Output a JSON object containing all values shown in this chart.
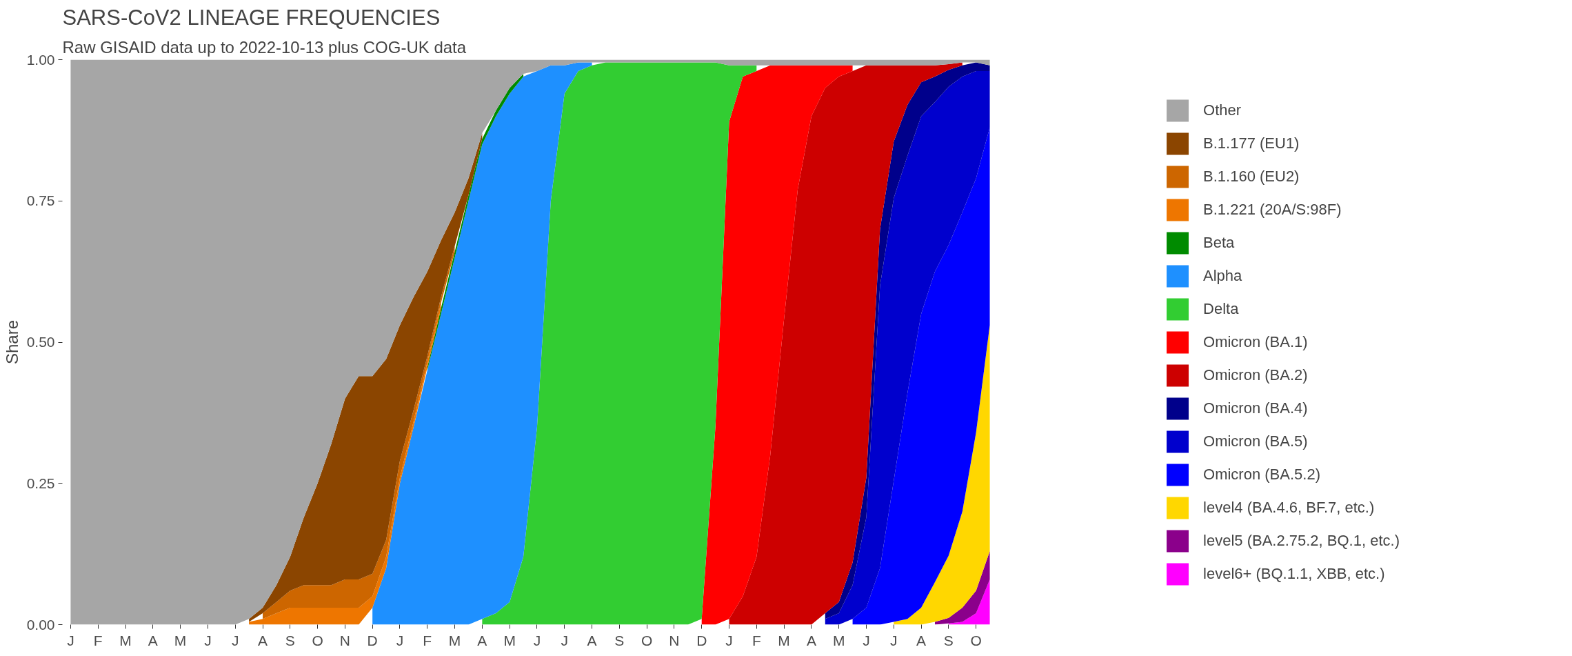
{
  "chart_data": {
    "type": "area",
    "stacked": true,
    "title": "SARS-CoV2 LINEAGE FREQUENCIES",
    "subtitle": "Raw GISAID data up to 2022-10-13 plus COG-UK data",
    "ylabel": "Share",
    "legend": "right",
    "ylim": [
      0,
      1
    ],
    "yticks": [
      {
        "value": 0,
        "label": "0.00"
      },
      {
        "value": 0.25,
        "label": "0.25"
      },
      {
        "value": 0.5,
        "label": "0.50"
      },
      {
        "value": 0.75,
        "label": "0.75"
      },
      {
        "value": 1,
        "label": "1.00"
      }
    ],
    "categories": [
      "J",
      null,
      "F",
      null,
      "M",
      null,
      "A",
      null,
      "M",
      null,
      "J",
      null,
      "J",
      null,
      "A",
      null,
      "S",
      null,
      "O",
      null,
      "N",
      null,
      "D",
      null,
      "J",
      null,
      "F",
      null,
      "M",
      null,
      "A",
      null,
      "M",
      null,
      "J",
      null,
      "J",
      null,
      "A",
      null,
      "S",
      null,
      "O",
      null,
      "N",
      null,
      "D",
      null,
      "J",
      null,
      "F",
      null,
      "M",
      null,
      "A",
      null,
      "M",
      null,
      "J",
      null,
      "J",
      null,
      "A",
      null,
      "S",
      null,
      "O",
      null
    ],
    "series": [
      {
        "name": "level6+ (BQ.1.1, XBB, etc.)",
        "color": "#ff00ff",
        "values": [
          null,
          null,
          null,
          null,
          null,
          null,
          null,
          null,
          null,
          null,
          null,
          null,
          null,
          null,
          null,
          null,
          null,
          null,
          null,
          null,
          null,
          null,
          null,
          null,
          null,
          null,
          null,
          null,
          null,
          null,
          null,
          null,
          null,
          null,
          null,
          null,
          null,
          null,
          null,
          null,
          null,
          null,
          null,
          null,
          null,
          null,
          null,
          null,
          null,
          null,
          null,
          null,
          null,
          null,
          null,
          null,
          null,
          null,
          null,
          null,
          null,
          null,
          null,
          null,
          0.002,
          0.005,
          0.02,
          0.08
        ]
      },
      {
        "name": "level5 (BA.2.75.2, BQ.1, etc.)",
        "color": "#8b008b",
        "values": [
          null,
          null,
          null,
          null,
          null,
          null,
          null,
          null,
          null,
          null,
          null,
          null,
          null,
          null,
          null,
          null,
          null,
          null,
          null,
          null,
          null,
          null,
          null,
          null,
          null,
          null,
          null,
          null,
          null,
          null,
          null,
          null,
          null,
          null,
          null,
          null,
          null,
          null,
          null,
          null,
          null,
          null,
          null,
          null,
          null,
          null,
          null,
          null,
          null,
          null,
          null,
          null,
          null,
          null,
          null,
          null,
          null,
          null,
          null,
          null,
          null,
          null,
          null,
          0.005,
          0.01,
          0.025,
          0.04,
          0.05
        ]
      },
      {
        "name": "level4 (BA.4.6, BF.7, etc.)",
        "color": "#ffd700",
        "values": [
          null,
          null,
          null,
          null,
          null,
          null,
          null,
          null,
          null,
          null,
          null,
          null,
          null,
          null,
          null,
          null,
          null,
          null,
          null,
          null,
          null,
          null,
          null,
          null,
          null,
          null,
          null,
          null,
          null,
          null,
          null,
          null,
          null,
          null,
          null,
          null,
          null,
          null,
          null,
          null,
          null,
          null,
          null,
          null,
          null,
          null,
          null,
          null,
          null,
          null,
          null,
          null,
          null,
          null,
          null,
          null,
          null,
          null,
          null,
          null,
          0.005,
          0.01,
          0.03,
          0.07,
          0.11,
          0.17,
          0.28,
          0.4
        ]
      },
      {
        "name": "Omicron (BA.5.2)",
        "color": "#0000ff",
        "values": [
          null,
          null,
          null,
          null,
          null,
          null,
          null,
          null,
          null,
          null,
          null,
          null,
          null,
          null,
          null,
          null,
          null,
          null,
          null,
          null,
          null,
          null,
          null,
          null,
          null,
          null,
          null,
          null,
          null,
          null,
          null,
          null,
          null,
          null,
          null,
          null,
          null,
          null,
          null,
          null,
          null,
          null,
          null,
          null,
          null,
          null,
          null,
          null,
          null,
          null,
          null,
          null,
          null,
          null,
          null,
          null,
          null,
          0.01,
          0.03,
          0.1,
          0.25,
          0.4,
          0.52,
          0.55,
          0.55,
          0.53,
          0.45,
          0.35
        ]
      },
      {
        "name": "Omicron (BA.5)",
        "color": "#0000cd",
        "values": [
          null,
          null,
          null,
          null,
          null,
          null,
          null,
          null,
          null,
          null,
          null,
          null,
          null,
          null,
          null,
          null,
          null,
          null,
          null,
          null,
          null,
          null,
          null,
          null,
          null,
          null,
          null,
          null,
          null,
          null,
          null,
          null,
          null,
          null,
          null,
          null,
          null,
          null,
          null,
          null,
          null,
          null,
          null,
          null,
          null,
          null,
          null,
          null,
          null,
          null,
          null,
          null,
          null,
          null,
          null,
          0.01,
          0.02,
          0.06,
          0.16,
          0.5,
          0.5,
          0.42,
          0.35,
          0.3,
          0.28,
          0.24,
          0.19,
          0.1
        ]
      },
      {
        "name": "Omicron (BA.4)",
        "color": "#00008b",
        "values": [
          null,
          null,
          null,
          null,
          null,
          null,
          null,
          null,
          null,
          null,
          null,
          null,
          null,
          null,
          null,
          null,
          null,
          null,
          null,
          null,
          null,
          null,
          null,
          null,
          null,
          null,
          null,
          null,
          null,
          null,
          null,
          null,
          null,
          null,
          null,
          null,
          null,
          null,
          null,
          null,
          null,
          null,
          null,
          null,
          null,
          null,
          null,
          null,
          null,
          null,
          null,
          null,
          null,
          null,
          null,
          0.01,
          0.02,
          0.04,
          0.07,
          0.1,
          0.1,
          0.09,
          0.06,
          0.045,
          0.03,
          0.02,
          0.015,
          0.01
        ]
      },
      {
        "name": "Omicron (BA.2)",
        "color": "#cd0000",
        "values": [
          null,
          null,
          null,
          null,
          null,
          null,
          null,
          null,
          null,
          null,
          null,
          null,
          null,
          null,
          null,
          null,
          null,
          null,
          null,
          null,
          null,
          null,
          null,
          null,
          null,
          null,
          null,
          null,
          null,
          null,
          null,
          null,
          null,
          null,
          null,
          null,
          null,
          null,
          null,
          null,
          null,
          null,
          null,
          null,
          null,
          null,
          null,
          null,
          0.01,
          0.05,
          0.12,
          0.3,
          0.54,
          0.77,
          0.9,
          0.93,
          0.93,
          0.87,
          0.73,
          0.29,
          0.135,
          0.07,
          0.03,
          0.02,
          0.01,
          0.005,
          null,
          null
        ]
      },
      {
        "name": "Omicron (BA.1)",
        "color": "#ff0000",
        "values": [
          null,
          null,
          null,
          null,
          null,
          null,
          null,
          null,
          null,
          null,
          null,
          null,
          null,
          null,
          null,
          null,
          null,
          null,
          null,
          null,
          null,
          null,
          null,
          null,
          null,
          null,
          null,
          null,
          null,
          null,
          null,
          null,
          null,
          null,
          null,
          null,
          null,
          null,
          null,
          null,
          null,
          null,
          null,
          null,
          null,
          null,
          0.01,
          0.35,
          0.88,
          0.92,
          0.86,
          0.69,
          0.45,
          0.22,
          0.09,
          0.04,
          0.02,
          0.01,
          null,
          null,
          null,
          null,
          null,
          null,
          null,
          null,
          null,
          null
        ]
      },
      {
        "name": "Delta",
        "color": "#32cd32",
        "values": [
          null,
          null,
          null,
          null,
          null,
          null,
          null,
          null,
          null,
          null,
          null,
          null,
          null,
          null,
          null,
          null,
          null,
          null,
          null,
          null,
          null,
          null,
          null,
          null,
          null,
          null,
          null,
          null,
          null,
          null,
          0.01,
          0.02,
          0.04,
          0.12,
          0.35,
          0.75,
          0.94,
          0.98,
          0.99,
          0.995,
          0.995,
          0.995,
          0.995,
          0.995,
          0.995,
          0.995,
          0.985,
          0.645,
          0.1,
          0.02,
          0.01,
          null,
          null,
          null,
          null,
          null,
          null,
          null,
          null,
          null,
          null,
          null,
          null,
          null,
          null,
          null,
          null,
          null
        ]
      },
      {
        "name": "Alpha",
        "color": "#1e90ff",
        "values": [
          null,
          null,
          null,
          null,
          null,
          null,
          null,
          null,
          null,
          null,
          null,
          null,
          null,
          null,
          null,
          null,
          null,
          null,
          null,
          null,
          null,
          null,
          0.03,
          0.1,
          0.25,
          0.35,
          0.45,
          0.55,
          0.65,
          0.75,
          0.84,
          0.88,
          0.9,
          0.85,
          0.63,
          0.24,
          0.05,
          0.015,
          0.005,
          null,
          null,
          null,
          null,
          null,
          null,
          null,
          null,
          null,
          null,
          null,
          null,
          null,
          null,
          null,
          null,
          null,
          null,
          null,
          null,
          null,
          null,
          null,
          null,
          null,
          null,
          null,
          null,
          null
        ]
      },
      {
        "name": "Beta",
        "color": "#008b00",
        "values": [
          null,
          null,
          null,
          null,
          null,
          null,
          null,
          null,
          null,
          null,
          null,
          null,
          null,
          null,
          null,
          null,
          null,
          null,
          null,
          null,
          null,
          null,
          null,
          null,
          null,
          null,
          0.005,
          0.01,
          0.01,
          0.01,
          0.01,
          0.01,
          0.01,
          0.005,
          null,
          null,
          null,
          null,
          null,
          null,
          null,
          null,
          null,
          null,
          null,
          null,
          null,
          null,
          null,
          null,
          null,
          null,
          null,
          null,
          null,
          null,
          null,
          null,
          null,
          null,
          null,
          null,
          null,
          null,
          null,
          null,
          null,
          null
        ]
      },
      {
        "name": "B.1.221 (20A/S:98F)",
        "color": "#ee7600",
        "values": [
          null,
          null,
          null,
          null,
          null,
          null,
          null,
          null,
          null,
          null,
          null,
          null,
          null,
          0.005,
          0.01,
          0.02,
          0.03,
          0.03,
          0.03,
          0.03,
          0.03,
          0.03,
          0.02,
          0.02,
          0.01,
          0.01,
          0.01,
          0.01,
          null,
          null,
          null,
          null,
          null,
          null,
          null,
          null,
          null,
          null,
          null,
          null,
          null,
          null,
          null,
          null,
          null,
          null,
          null,
          null,
          null,
          null,
          null,
          null,
          null,
          null,
          null,
          null,
          null,
          null,
          null,
          null,
          null,
          null,
          null,
          null,
          null,
          null,
          null,
          null
        ]
      },
      {
        "name": "B.1.160 (EU2)",
        "color": "#cd6600",
        "values": [
          null,
          null,
          null,
          null,
          null,
          null,
          null,
          null,
          null,
          null,
          null,
          null,
          null,
          null,
          0.01,
          0.02,
          0.03,
          0.04,
          0.04,
          0.04,
          0.05,
          0.05,
          0.04,
          0.03,
          0.03,
          0.02,
          0.01,
          0.01,
          0.01,
          null,
          null,
          null,
          null,
          null,
          null,
          null,
          null,
          null,
          null,
          null,
          null,
          null,
          null,
          null,
          null,
          null,
          null,
          null,
          null,
          null,
          null,
          null,
          null,
          null,
          null,
          null,
          null,
          null,
          null,
          null,
          null,
          null,
          null,
          null,
          null,
          null,
          null,
          null
        ]
      },
      {
        "name": "B.1.177 (EU1)",
        "color": "#8b4500",
        "values": [
          null,
          null,
          null,
          null,
          null,
          null,
          null,
          null,
          null,
          null,
          null,
          null,
          null,
          0.005,
          0.01,
          0.03,
          0.06,
          0.12,
          0.18,
          0.25,
          0.32,
          0.36,
          0.35,
          0.32,
          0.24,
          0.2,
          0.15,
          0.1,
          0.06,
          0.03,
          0.01,
          null,
          null,
          null,
          null,
          null,
          null,
          null,
          null,
          null,
          null,
          null,
          null,
          null,
          null,
          null,
          null,
          null,
          null,
          null,
          null,
          null,
          null,
          null,
          null,
          null,
          null,
          null,
          null,
          null,
          null,
          null,
          null,
          null,
          null,
          null,
          null,
          null
        ]
      },
      {
        "name": "Other",
        "color": "#a6a6a6",
        "values": [
          1,
          1,
          1,
          1,
          1,
          1,
          1,
          1,
          1,
          1,
          1,
          1,
          1,
          0.99,
          0.97,
          0.93,
          0.88,
          0.81,
          0.75,
          0.68,
          0.6,
          0.56,
          0.56,
          0.53,
          0.47,
          0.42,
          0.375,
          0.32,
          0.27,
          0.21,
          0.13,
          0.09,
          0.05,
          0.025,
          0.02,
          0.01,
          0.01,
          0.005,
          0.005,
          0.005,
          0.005,
          0.005,
          0.005,
          0.005,
          0.005,
          0.005,
          0.005,
          0.005,
          0.01,
          0.01,
          0.01,
          0.01,
          0.01,
          0.01,
          0.01,
          0.01,
          0.01,
          0.01,
          0.01,
          0.01,
          0.01,
          0.01,
          0.01,
          0.01,
          0.008,
          0.005,
          0.005,
          0.01
        ]
      }
    ]
  }
}
